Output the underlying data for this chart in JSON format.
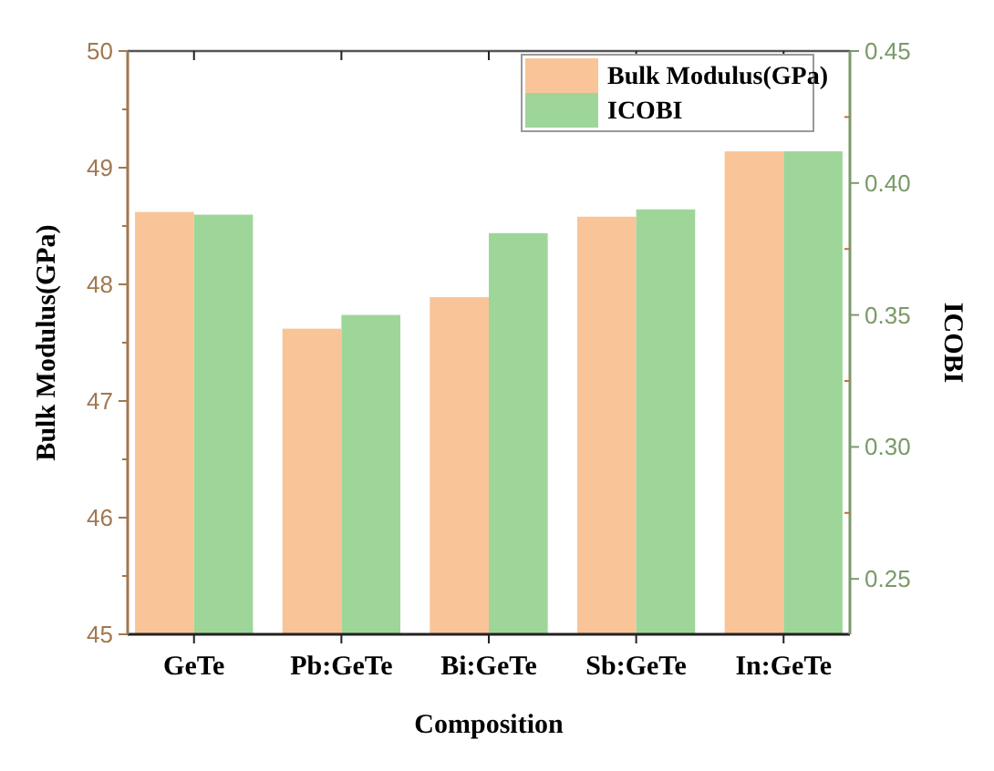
{
  "chart_data": {
    "type": "bar",
    "xlabel": "Composition",
    "ylabel": "Bulk Modulus(GPa)",
    "y2label": "ICOBI",
    "categories": [
      "GeTe",
      "Pb:GeTe",
      "Bi:GeTe",
      "Sb:GeTe",
      "In:GeTe"
    ],
    "series": [
      {
        "name": "Bulk Modulus(GPa)",
        "color": "#f9c497",
        "values": [
          48.62,
          47.62,
          47.89,
          48.58,
          49.14
        ]
      },
      {
        "name": "ICOBI",
        "color": "#9ed69a",
        "axis": "y2",
        "values": [
          0.388,
          0.35,
          0.381,
          0.39,
          0.412
        ]
      }
    ],
    "ylim": [
      45,
      50
    ],
    "yticks": [
      45,
      46,
      47,
      48,
      49,
      50
    ],
    "y2lim": [
      0.229,
      0.45
    ],
    "y2ticks": [
      0.25,
      {
        "value": 0.3,
        "label": "0.30"
      },
      0.35,
      {
        "value": 0.4,
        "label": "0.40"
      },
      0.45
    ],
    "legend": "top right"
  }
}
